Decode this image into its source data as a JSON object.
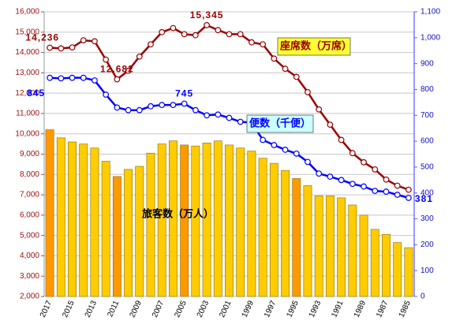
{
  "chart_data": {
    "type": "bar-line",
    "categories": [
      "2017",
      null,
      "2015",
      null,
      "2013",
      null,
      "2011",
      null,
      "2009",
      null,
      "2007",
      null,
      "2005",
      null,
      "2003",
      null,
      "2001",
      null,
      "1999",
      null,
      "1997",
      null,
      "1995",
      null,
      "1993",
      null,
      "1991",
      null,
      "1989",
      null,
      "1987",
      null,
      "1985"
    ],
    "ylim": [
      2000,
      16000
    ],
    "yticks": [
      {
        "value": 2000,
        "label": "2,000"
      },
      {
        "value": 3000,
        "label": "3,000"
      },
      {
        "value": 4000,
        "label": "4,000"
      },
      {
        "value": 5000,
        "label": "5,000"
      },
      {
        "value": 6000,
        "label": "6,000"
      },
      {
        "value": 7000,
        "label": "7,000"
      },
      {
        "value": 8000,
        "label": "8,000"
      },
      {
        "value": 9000,
        "label": "9,000"
      },
      {
        "value": 10000,
        "label": "10,000"
      },
      {
        "value": 11000,
        "label": "11,000"
      },
      {
        "value": 12000,
        "label": "12,000"
      },
      {
        "value": 13000,
        "label": "13,000"
      },
      {
        "value": 14000,
        "label": "14,000"
      },
      {
        "value": 15000,
        "label": "15,000"
      },
      {
        "value": 16000,
        "label": "16,000"
      }
    ],
    "y2lim": [
      0,
      1100
    ],
    "y2ticks": [
      0,
      100,
      200,
      300,
      400,
      500,
      600,
      700,
      800,
      900,
      {
        "value": 1000,
        "label": "1,000"
      },
      {
        "value": 1100,
        "label": "1,100"
      }
    ],
    "grid": true,
    "series": [
      {
        "name": "旅客数（万人）",
        "kind": "bar",
        "color": "#ffcc00",
        "colors": [
          "#ff9900",
          "#ffcc00",
          "#ffcc00",
          "#ffcc00",
          "#ffcc00",
          "#ffcc00",
          "#ff9900",
          "#ffcc00",
          "#ffcc00",
          "#ffcc00",
          "#ffcc00",
          "#ffcc00",
          "#ff9900",
          "#ffcc00",
          "#ffcc00",
          "#ffcc00",
          "#ffcc00",
          "#ffcc00",
          "#ffcc00",
          "#ffcc00",
          "#ffcc00",
          "#ffcc00",
          "#ff9900",
          "#ffcc00",
          "#ffcc00",
          "#ffcc00",
          "#ffcc00",
          "#ffcc00",
          "#ffcc00",
          "#ffcc00",
          "#ffcc00",
          "#ffcc00",
          "#ffcc00"
        ],
        "values": [
          10200,
          9800,
          9600,
          9500,
          9300,
          8650,
          7900,
          8250,
          8400,
          9050,
          9500,
          9650,
          9450,
          9400,
          9550,
          9650,
          9450,
          9300,
          9150,
          8800,
          8550,
          8200,
          7800,
          7450,
          6950,
          6950,
          6850,
          6500,
          6000,
          5300,
          5050,
          4650,
          4400
        ]
      },
      {
        "name": "座席数（万席）",
        "kind": "line",
        "color": "#990000",
        "values": [
          14236,
          14200,
          14250,
          14600,
          14550,
          13650,
          12682,
          13100,
          13800,
          14400,
          15000,
          15200,
          14900,
          14850,
          15345,
          15100,
          14900,
          14900,
          14500,
          14400,
          13700,
          13200,
          12800,
          12050,
          11200,
          10450,
          9700,
          9050,
          8600,
          8250,
          7750,
          7450,
          7250
        ],
        "value_labels": [
          "14,236",
          null,
          null,
          null,
          null,
          null,
          "12,682",
          null,
          null,
          null,
          null,
          null,
          null,
          null,
          "15,345",
          null,
          null,
          null,
          null,
          null,
          null,
          null,
          null,
          null,
          null,
          null,
          null,
          null,
          null,
          null,
          null,
          null,
          null
        ]
      },
      {
        "name": "便数（千便）",
        "kind": "line",
        "axis": "y2",
        "color": "#0000ff",
        "values": [
          845,
          843,
          845,
          845,
          835,
          780,
          730,
          720,
          720,
          735,
          740,
          740,
          745,
          720,
          700,
          703,
          690,
          675,
          672,
          605,
          585,
          567,
          552,
          520,
          475,
          463,
          450,
          435,
          425,
          408,
          405,
          393,
          381
        ],
        "value_labels": [
          "845",
          null,
          null,
          null,
          null,
          null,
          null,
          null,
          null,
          null,
          null,
          null,
          "745",
          null,
          null,
          null,
          null,
          null,
          null,
          null,
          null,
          null,
          null,
          null,
          null,
          null,
          null,
          null,
          null,
          null,
          null,
          null,
          "381"
        ]
      }
    ]
  }
}
